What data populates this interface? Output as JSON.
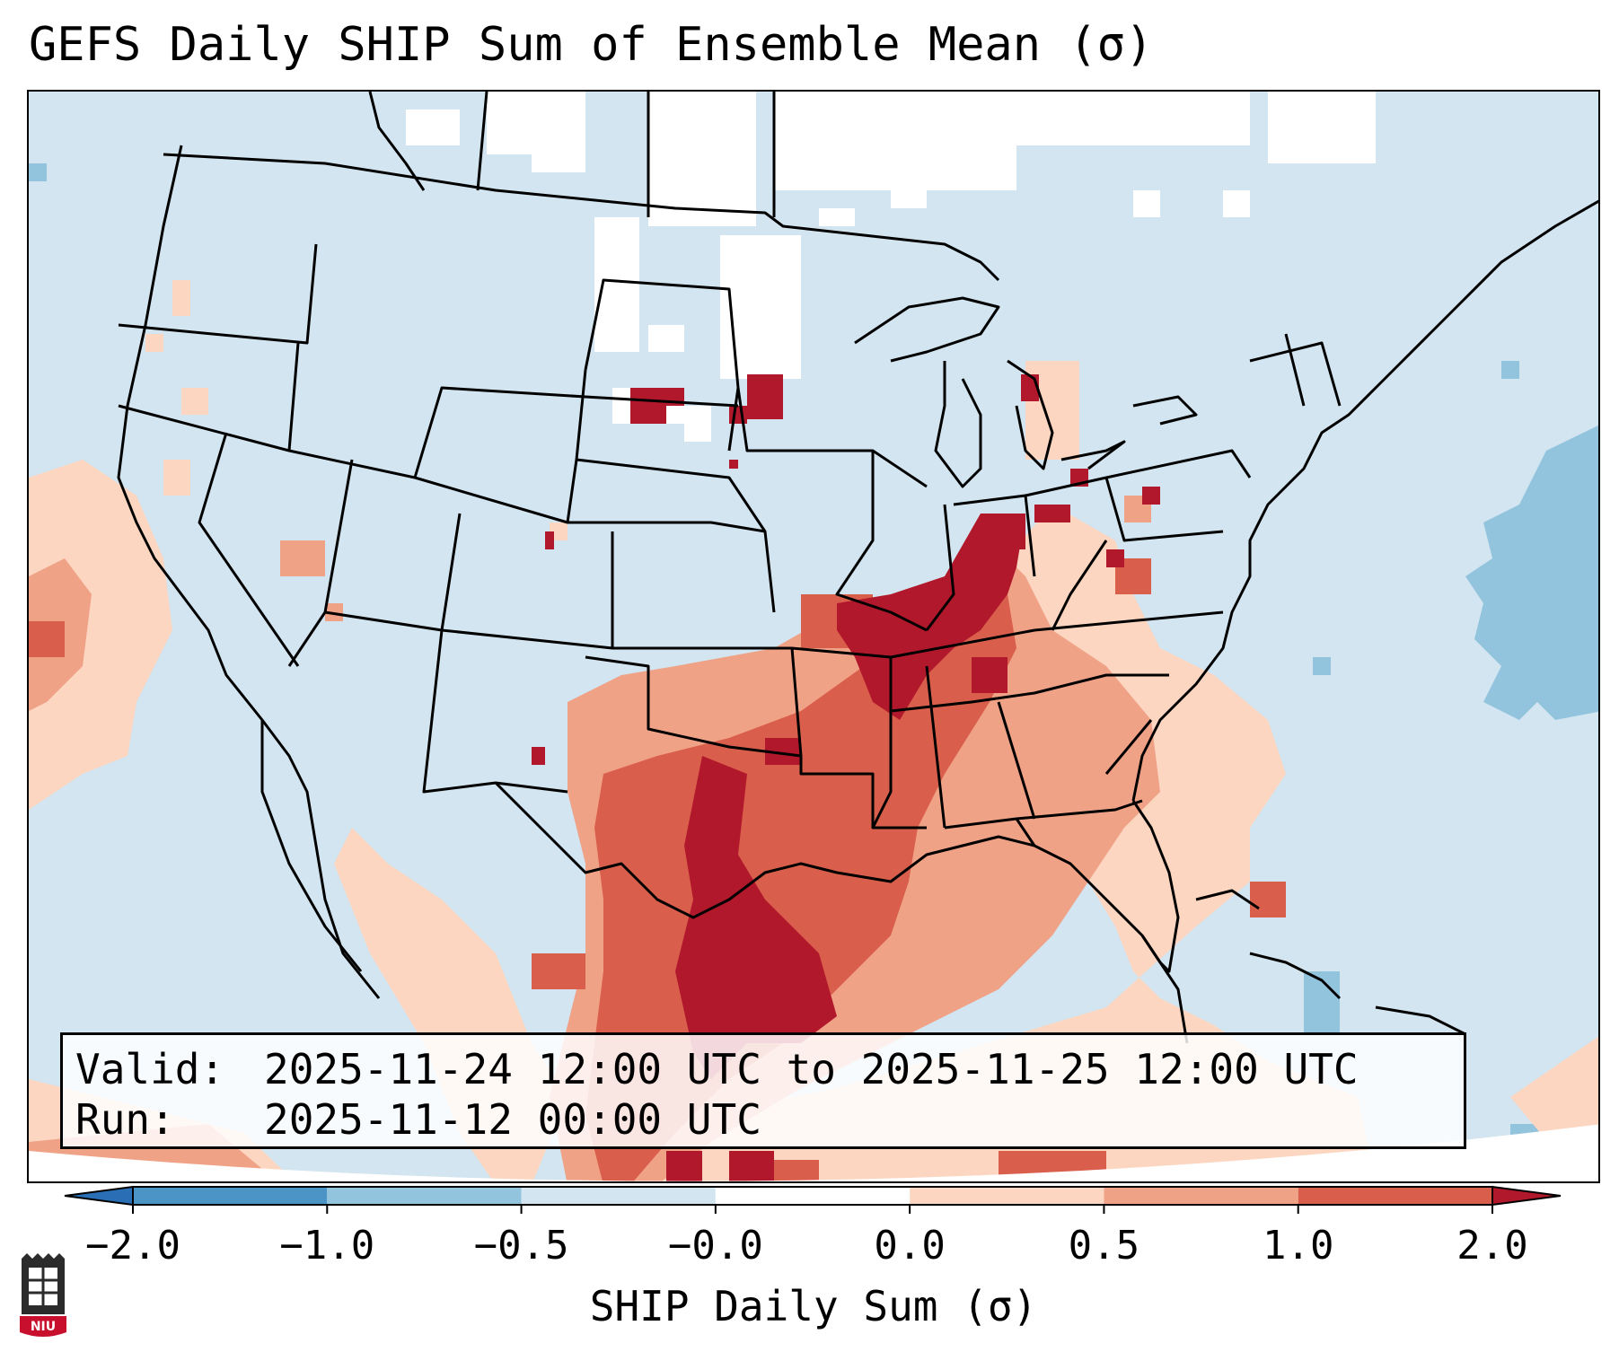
{
  "title": "GEFS Daily SHIP Sum of Ensemble Mean (σ)",
  "info": {
    "valid_label": "Valid:",
    "valid_value": "2025-11-24 12:00 UTC to 2025-11-25 12:00 UTC",
    "run_label": "Run:",
    "run_value": "2025-11-12 00:00 UTC"
  },
  "colorbar": {
    "label": "SHIP Daily Sum (σ)",
    "ticks": [
      "−2.0",
      "−1.0",
      "−0.5",
      "−0.0",
      "0.0",
      "0.5",
      "1.0",
      "2.0"
    ],
    "colors": [
      "#2a6fb5",
      "#4c93c6",
      "#93c4de",
      "#d2e5f0",
      "#ffffff",
      "#fcd6c1",
      "#f0a287",
      "#d95f4c",
      "#b2182b"
    ],
    "extend": "both"
  },
  "map": {
    "region": "Contiguous United States with portions of Canada, Mexico and the Caribbean",
    "colors": {
      "background_near_zero": "#d2e5f0",
      "high_positive": "#b2182b",
      "positive": "#d95f4c",
      "moderate_positive": "#f0a287",
      "slight_positive": "#fcd6c1",
      "slight_negative": "#93c4de",
      "no_data": "#ffffff"
    }
  },
  "logo": {
    "text": "NIU",
    "icon": "niu-university-logo-icon"
  }
}
